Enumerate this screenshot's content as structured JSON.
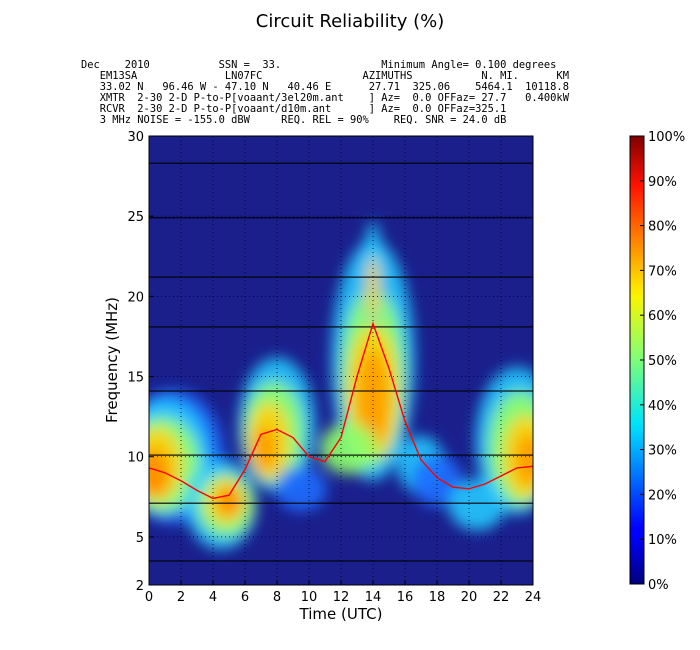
{
  "chart_data": {
    "type": "heatmap",
    "title": "Circuit Reliability (%)",
    "header_lines": [
      "Dec    2010           SSN =  33.                Minimum Angle= 0.100 degrees",
      "   EM13SA              LN07FC                AZIMUTHS           N. MI.      KM",
      "   33.02 N   96.46 W - 47.10 N   40.46 E      27.71  325.06    5464.1  10118.8",
      "   XMTR  2-30 2-D P-to-P[voaant/3el20m.ant    ] Az=  0.0 OFFaz= 27.7   0.400kW",
      "   RCVR  2-30 2-D P-to-P[voaant/d10m.ant      ] Az=  0.0 OFFaz=325.1",
      "   3 MHz NOISE = -155.0 dBW     REQ. REL = 90%    REQ. SNR = 24.0 dB"
    ],
    "xlabel": "Time (UTC)",
    "ylabel": "Frequency (MHz)",
    "xlim": [
      0,
      24
    ],
    "ylim": [
      2,
      30
    ],
    "x_ticks": [
      "0",
      "2",
      "4",
      "6",
      "8",
      "10",
      "12",
      "14",
      "16",
      "18",
      "20",
      "22",
      "24"
    ],
    "y_ticks": [
      "2",
      "5",
      "10",
      "15",
      "20",
      "25",
      "30"
    ],
    "grid": true,
    "horizontal_lines_mhz": [
      3.5,
      7.1,
      10.1,
      14.1,
      18.1,
      21.2,
      24.9,
      28.3
    ],
    "mufday_curve": {
      "x": [
        0,
        1,
        2,
        3,
        4,
        5,
        6,
        7,
        8,
        9,
        10,
        11,
        12,
        13,
        14,
        15,
        16,
        17,
        18,
        19,
        20,
        21,
        22,
        23,
        24
      ],
      "y": [
        9.3,
        9.0,
        8.5,
        7.9,
        7.4,
        7.6,
        9.2,
        11.4,
        11.7,
        11.2,
        10.0,
        9.7,
        11.2,
        15.0,
        18.3,
        15.5,
        12.2,
        9.8,
        8.7,
        8.1,
        8.0,
        8.3,
        8.8,
        9.3,
        9.4
      ]
    },
    "colorbar": {
      "label_ticks": [
        "0%",
        "10%",
        "20%",
        "30%",
        "40%",
        "50%",
        "60%",
        "70%",
        "80%",
        "90%",
        "100%"
      ],
      "colormap": "jet"
    },
    "colors": {
      "background": "#1a1f8c",
      "curve": "#ff0000",
      "lines": "#000000"
    }
  }
}
